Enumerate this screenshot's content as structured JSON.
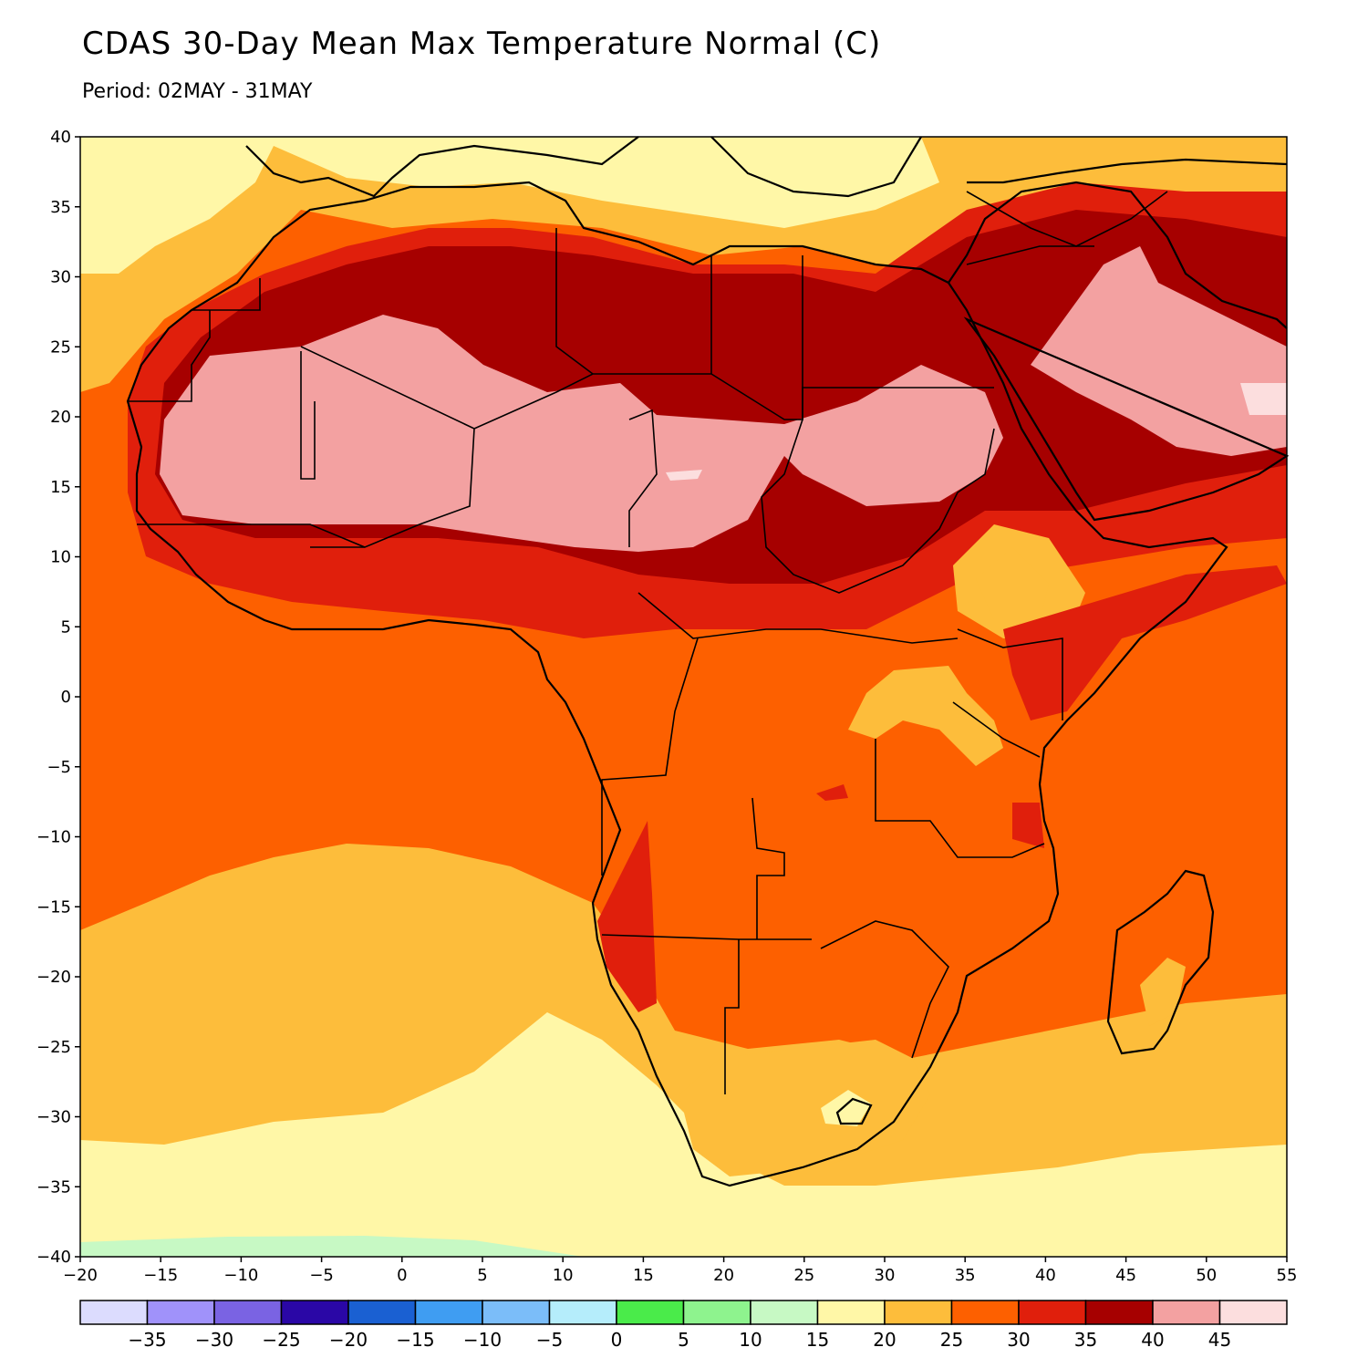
{
  "map": {
    "title": "CDAS 30-Day Mean Max Temperature Normal (C)",
    "subtitle": "Period: 02MAY - 31MAY",
    "lon_range": [
      -20,
      55
    ],
    "lat_range": [
      -40,
      40
    ],
    "lon_ticks": [
      -20,
      -15,
      -10,
      -5,
      0,
      5,
      10,
      15,
      20,
      25,
      30,
      35,
      40,
      45,
      50,
      55
    ],
    "lat_ticks": [
      40,
      35,
      30,
      25,
      20,
      15,
      10,
      5,
      0,
      -5,
      -10,
      -15,
      -20,
      -25,
      -30,
      -35,
      -40
    ],
    "lon_tick_labels": [
      "−20",
      "−15",
      "−10",
      "−5",
      "0",
      "5",
      "10",
      "15",
      "20",
      "25",
      "30",
      "35",
      "40",
      "45",
      "50",
      "55"
    ],
    "lat_tick_labels": [
      "40",
      "35",
      "30",
      "25",
      "20",
      "15",
      "10",
      "5",
      "0",
      "−5",
      "−10",
      "−15",
      "−20",
      "−25",
      "−30",
      "−35",
      "−40"
    ]
  },
  "colorbar": {
    "colors": [
      "#dcdcfe",
      "#a092fa",
      "#7a63e3",
      "#2a07a6",
      "#1a60d2",
      "#3f9df2",
      "#7bbdf9",
      "#b5edfb",
      "#4aeb4a",
      "#8ef38e",
      "#c7f9c4",
      "#fff7a7",
      "#fdbd3b",
      "#fd6000",
      "#e01f0c",
      "#a60000",
      "#f3a1a1",
      "#fcdede"
    ],
    "labels": [
      "−35",
      "−30",
      "−25",
      "−20",
      "−15",
      "−10",
      "−5",
      "0",
      "5",
      "10",
      "15",
      "20",
      "25",
      "30",
      "35",
      "40",
      "45"
    ]
  },
  "colors": {
    "c20": "#fff7a7",
    "c25": "#fdbd3b",
    "c30": "#fd6000",
    "c35": "#e01f0c",
    "c40": "#a60000",
    "c45": "#f3a1a1",
    "c50": "#fcdede",
    "c15": "#c7f9c4",
    "coast": "#000000",
    "admin": "#9a9a9a"
  }
}
